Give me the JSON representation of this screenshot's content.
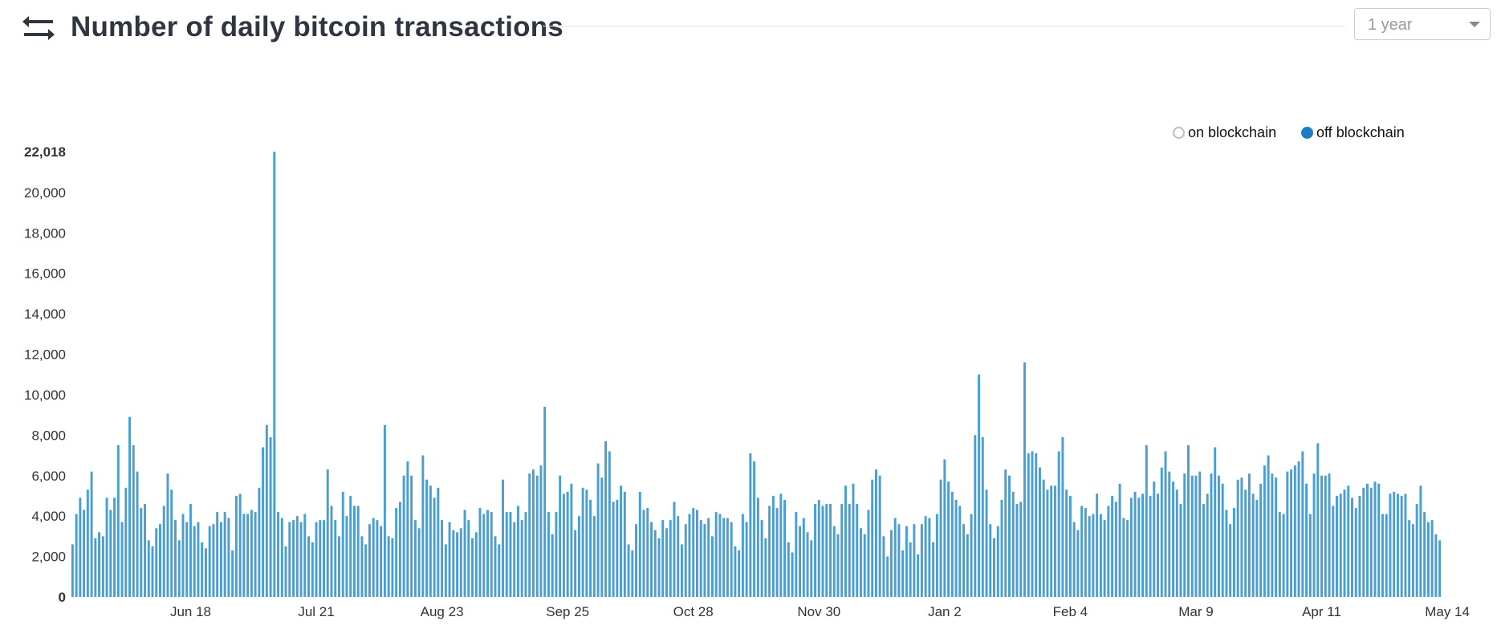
{
  "header": {
    "title": "Number of daily bitcoin transactions",
    "range_select": {
      "selected": "1 year"
    }
  },
  "legend": {
    "items": [
      {
        "label": "on blockchain",
        "active": false,
        "color": "#bcbcbc"
      },
      {
        "label": "off blockchain",
        "active": true,
        "color": "#1f7cc4"
      }
    ]
  },
  "chart_data": {
    "type": "bar",
    "title": "",
    "xlabel": "",
    "ylabel": "",
    "ylim": [
      0,
      22018
    ],
    "y_ticks": [
      0,
      2000,
      4000,
      6000,
      8000,
      10000,
      12000,
      14000,
      16000,
      18000,
      20000,
      22018
    ],
    "y_tick_labels": [
      "0",
      "2,000",
      "4,000",
      "6,000",
      "8,000",
      "10,000",
      "12,000",
      "14,000",
      "16,000",
      "18,000",
      "20,000",
      "22,018"
    ],
    "x_ticks": [
      {
        "label": "Jun 18",
        "index": 31
      },
      {
        "label": "Jul 21",
        "index": 64
      },
      {
        "label": "Aug 23",
        "index": 97
      },
      {
        "label": "Sep 25",
        "index": 130
      },
      {
        "label": "Oct 28",
        "index": 163
      },
      {
        "label": "Nov 30",
        "index": 196
      },
      {
        "label": "Jan 2",
        "index": 229
      },
      {
        "label": "Feb 4",
        "index": 262
      },
      {
        "label": "Mar 9",
        "index": 295
      },
      {
        "label": "Apr 11",
        "index": 328
      },
      {
        "label": "May 14",
        "index": 361
      }
    ],
    "bar_color": "#4a9fd0",
    "grid": false,
    "legend_position": "top-right",
    "series": [
      {
        "name": "off blockchain",
        "values": [
          2600,
          4100,
          4900,
          4300,
          5300,
          6200,
          2900,
          3200,
          3000,
          4900,
          4300,
          4900,
          7500,
          3700,
          5400,
          8900,
          7500,
          6200,
          4400,
          4600,
          2800,
          2500,
          3400,
          3600,
          4500,
          6100,
          5300,
          3800,
          2800,
          4100,
          3700,
          4600,
          3500,
          3700,
          2700,
          2400,
          3500,
          3600,
          4200,
          3700,
          4200,
          3900,
          2300,
          5000,
          5100,
          4100,
          4100,
          4300,
          4200,
          5400,
          7400,
          8500,
          7900,
          22018,
          4200,
          3900,
          2500,
          3700,
          3800,
          4000,
          3700,
          4100,
          3000,
          2700,
          3700,
          3800,
          3800,
          6300,
          4500,
          3800,
          3000,
          5200,
          4000,
          5000,
          4500,
          4500,
          3000,
          2600,
          3600,
          3900,
          3800,
          3500,
          8500,
          3000,
          2900,
          4400,
          4700,
          6000,
          6700,
          6000,
          3800,
          3400,
          7000,
          5800,
          5500,
          4900,
          5400,
          3800,
          2600,
          3700,
          3300,
          3200,
          3400,
          4300,
          3800,
          2900,
          3200,
          4400,
          4100,
          4300,
          4200,
          3000,
          2600,
          5800,
          4200,
          4200,
          3700,
          4500,
          3800,
          4200,
          6100,
          6300,
          6000,
          6500,
          9400,
          4200,
          3100,
          4200,
          6000,
          5100,
          5200,
          5600,
          3300,
          4000,
          5400,
          5300,
          4800,
          4000,
          6600,
          5900,
          7700,
          7200,
          4700,
          4800,
          5500,
          5200,
          2600,
          2300,
          3600,
          5200,
          4300,
          4400,
          3700,
          3300,
          2900,
          3800,
          3400,
          3800,
          4700,
          4000,
          2600,
          3600,
          4100,
          4400,
          4300,
          3800,
          3600,
          3900,
          3000,
          4200,
          4100,
          3900,
          3900,
          3700,
          2500,
          2300,
          4100,
          3700,
          7100,
          6700,
          4900,
          3800,
          2900,
          4500,
          5000,
          4400,
          5100,
          4800,
          2700,
          2200,
          4200,
          3500,
          3900,
          3200,
          2800,
          4600,
          4800,
          4500,
          4600,
          4600,
          3500,
          3100,
          4600,
          5500,
          4600,
          5600,
          4600,
          3400,
          3100,
          4300,
          5800,
          6300,
          6000,
          3000,
          2000,
          3300,
          3900,
          3600,
          2300,
          3500,
          2700,
          3600,
          2100,
          3600,
          4000,
          3900,
          2700,
          4100,
          5800,
          6800,
          5700,
          5200,
          4800,
          4500,
          3600,
          3100,
          4100,
          8000,
          11000,
          7900,
          5300,
          3600,
          2900,
          3500,
          4800,
          6300,
          6000,
          5200,
          4600,
          4700,
          11600,
          7100,
          7200,
          7100,
          6400,
          5800,
          5300,
          5500,
          5500,
          7200,
          7900,
          5300,
          5000,
          3700,
          3300,
          4500,
          4400,
          4000,
          4100,
          5100,
          4100,
          3800,
          4500,
          5000,
          4700,
          5600,
          3900,
          3800,
          4900,
          5200,
          4900,
          5100,
          7500,
          5000,
          5700,
          5100,
          6400,
          7200,
          6200,
          5700,
          5300,
          4600,
          6100,
          7500,
          6000,
          6000,
          6200,
          4600,
          5100,
          6100,
          7400,
          6000,
          5600,
          4300,
          3600,
          4400,
          5800,
          5900,
          5300,
          6100,
          5100,
          4800,
          5600,
          6500,
          7000,
          6100,
          5900,
          4200,
          4100,
          6200,
          6300,
          6500,
          6700,
          7200,
          5600,
          4100,
          6100,
          7600,
          6000,
          6000,
          6100,
          4500,
          5000,
          5100,
          5300,
          5500,
          4900,
          4400,
          5000,
          5400,
          5600,
          5400,
          5700,
          5600,
          4100,
          4100,
          5100,
          5200,
          5100,
          5000,
          5100,
          3800,
          3600,
          4600,
          5500,
          4200,
          3700,
          3800,
          3100,
          2800
        ]
      }
    ]
  }
}
